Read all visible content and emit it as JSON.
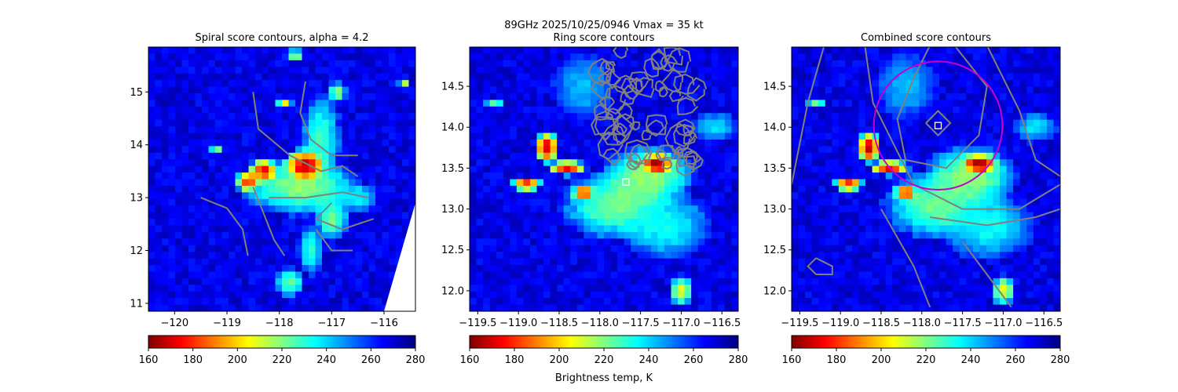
{
  "suptitle": {
    "line1": "89GHz  2025/10/25/0946    Vmax = 35 kt"
  },
  "colors": {
    "contour": "#808080",
    "ring_circle": "#c800c8",
    "marker": "#ffffff",
    "colormap": [
      "#800000",
      "#ff0000",
      "#ff8000",
      "#ffff00",
      "#80ff80",
      "#00ffff",
      "#0080ff",
      "#0000ff",
      "#000080"
    ]
  },
  "colorbar_xlabel": "Brightness temp, K",
  "chart_data": [
    {
      "type": "heatmap",
      "title": "Spiral score contours, alpha =  4.2",
      "xlim": [
        -120.5,
        -115.4
      ],
      "ylim": [
        10.85,
        15.85
      ],
      "xticks": [
        -120,
        -119,
        -118,
        -117,
        -116
      ],
      "xtick_labels": [
        "−120",
        "−119",
        "−118",
        "−117",
        "−116"
      ],
      "yticks": [
        11,
        12,
        13,
        14,
        15
      ],
      "ytick_labels": [
        "11",
        "12",
        "13",
        "14",
        "15"
      ],
      "colorbar": {
        "range": [
          160,
          280
        ],
        "ticks": [
          160,
          180,
          200,
          220,
          240,
          260,
          280
        ],
        "tick_labels": [
          "160",
          "180",
          "200",
          "220",
          "240",
          "260",
          "280"
        ]
      }
    },
    {
      "type": "heatmap",
      "title": "Ring score contours",
      "xlim": [
        -119.6,
        -116.3
      ],
      "ylim": [
        11.75,
        14.98
      ],
      "xticks": [
        -119.5,
        -119.0,
        -118.5,
        -118.0,
        -117.5,
        -117.0,
        -116.5
      ],
      "xtick_labels": [
        "−119.5",
        "−119.0",
        "−118.5",
        "−118.0",
        "−117.5",
        "−117.0",
        "−116.5"
      ],
      "yticks": [
        12.0,
        12.5,
        13.0,
        13.5,
        14.0,
        14.5
      ],
      "ytick_labels": [
        "12.0",
        "12.5",
        "13.0",
        "13.5",
        "14.0",
        "14.5"
      ],
      "marker": {
        "x": -117.68,
        "y": 13.33
      },
      "colorbar": {
        "range": [
          160,
          280
        ],
        "ticks": [
          160,
          180,
          200,
          220,
          240,
          260,
          280
        ],
        "tick_labels": [
          "160",
          "180",
          "200",
          "220",
          "240",
          "260",
          "280"
        ]
      }
    },
    {
      "type": "heatmap",
      "title": "Combined score contours",
      "xlim": [
        -119.6,
        -116.3
      ],
      "ylim": [
        11.75,
        14.98
      ],
      "xticks": [
        -119.5,
        -119.0,
        -118.5,
        -118.0,
        -117.5,
        -117.0,
        -116.5
      ],
      "xtick_labels": [
        "−119.5",
        "−119.0",
        "−118.5",
        "−118.0",
        "−117.5",
        "−117.0",
        "−116.5"
      ],
      "yticks": [
        12.0,
        12.5,
        13.0,
        13.5,
        14.0,
        14.5
      ],
      "ytick_labels": [
        "12.0",
        "12.5",
        "13.0",
        "13.5",
        "14.0",
        "14.5"
      ],
      "marker": {
        "x": -117.8,
        "y": 14.02
      },
      "ring": {
        "cx": -117.8,
        "cy": 14.02,
        "radius_deg": 0.79
      },
      "colorbar": {
        "range": [
          160,
          280
        ],
        "ticks": [
          160,
          180,
          200,
          220,
          240,
          260,
          280
        ],
        "tick_labels": [
          "160",
          "180",
          "200",
          "220",
          "240",
          "260",
          "280"
        ]
      }
    }
  ]
}
